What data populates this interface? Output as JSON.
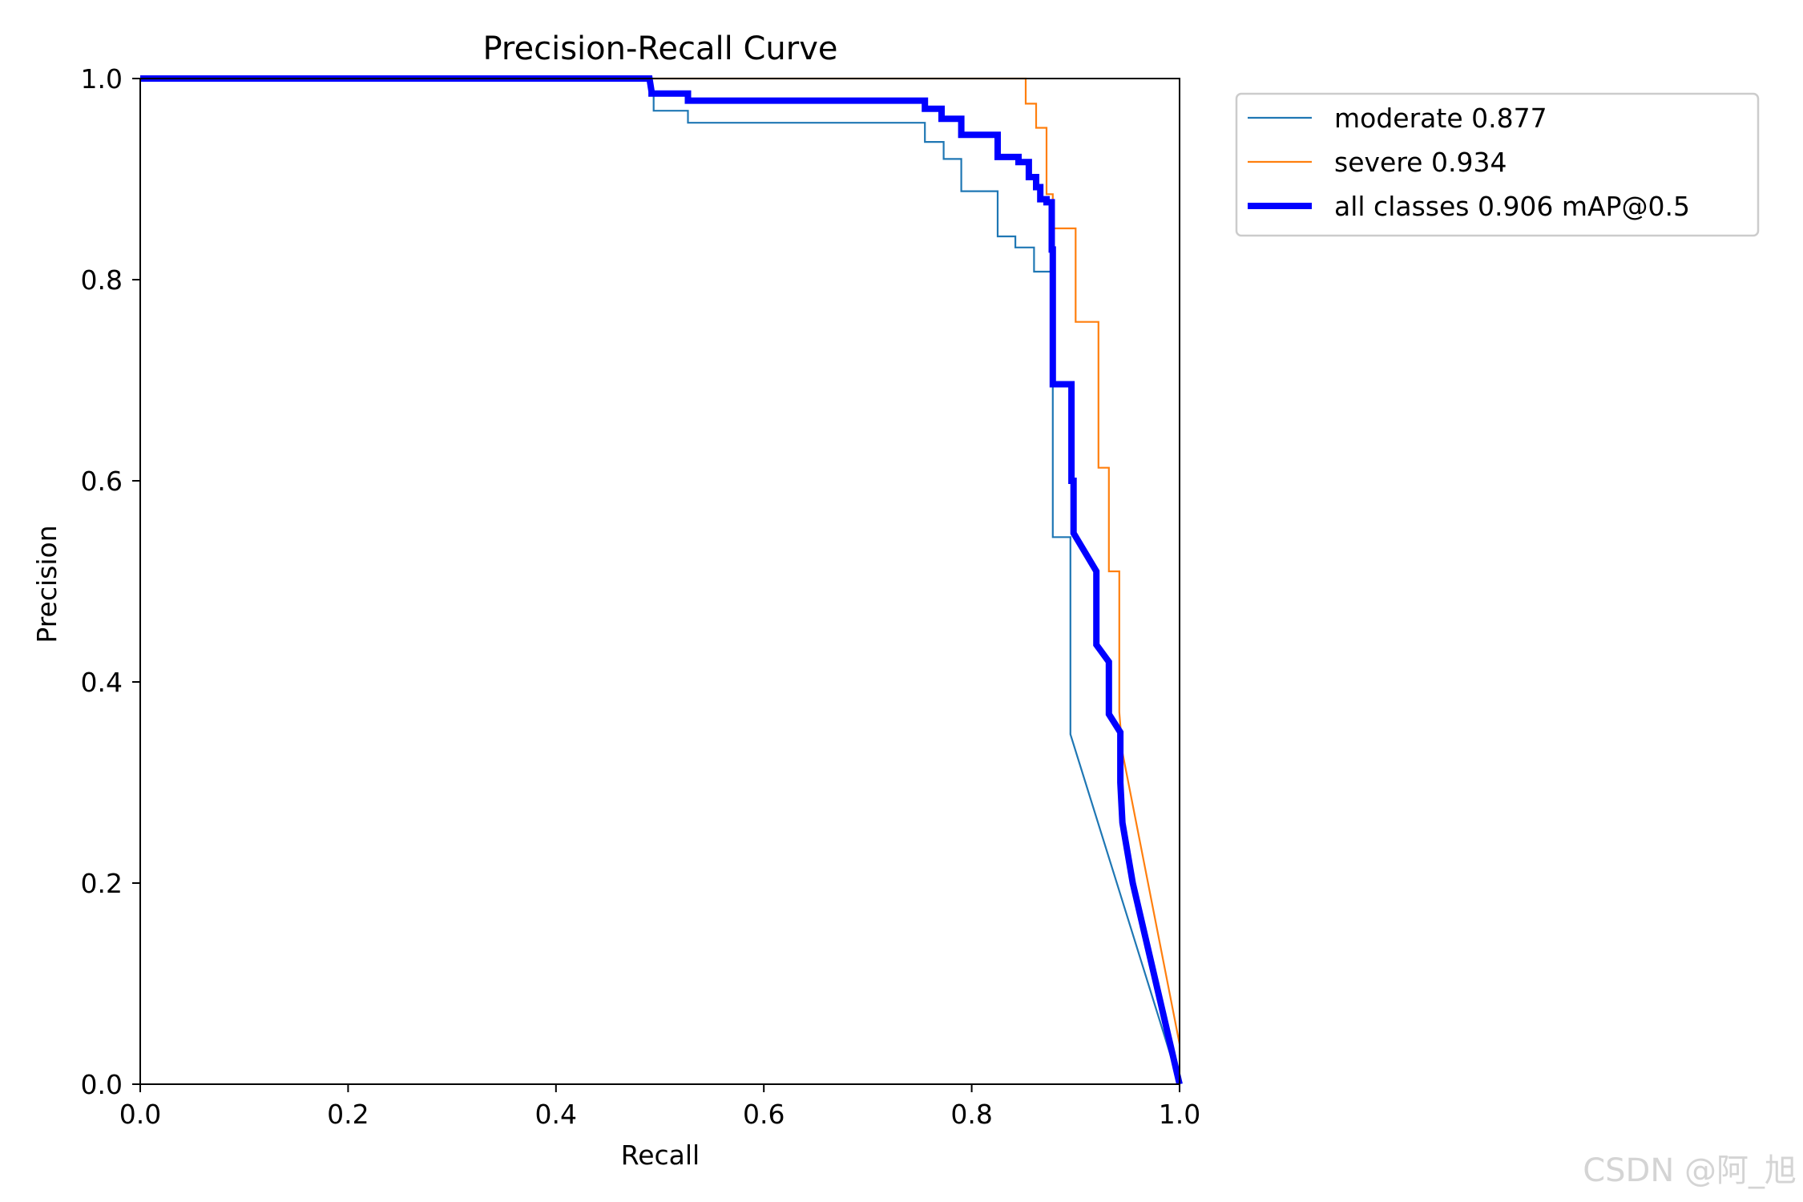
{
  "chart_data": {
    "type": "line",
    "title": "Precision-Recall Curve",
    "xlabel": "Recall",
    "ylabel": "Precision",
    "xlim": [
      0,
      1
    ],
    "ylim": [
      0,
      1
    ],
    "xticks": [
      "0.0",
      "0.2",
      "0.4",
      "0.6",
      "0.8",
      "1.0"
    ],
    "yticks": [
      "0.0",
      "0.2",
      "0.4",
      "0.6",
      "0.8",
      "1.0"
    ],
    "grid": false,
    "legend_position": "outside-top-right",
    "series": [
      {
        "name": "moderate 0.877",
        "color": "#1f77b4",
        "style": "thin",
        "x": [
          0,
          0.492,
          0.492,
          0.494,
          0.494,
          0.527,
          0.527,
          0.755,
          0.755,
          0.773,
          0.773,
          0.79,
          0.79,
          0.825,
          0.825,
          0.842,
          0.842,
          0.86,
          0.86,
          0.876,
          0.876,
          0.878,
          0.878,
          0.895,
          0.895,
          1.0
        ],
        "y": [
          1.0,
          1.0,
          0.985,
          0.985,
          0.968,
          0.968,
          0.956,
          0.956,
          0.937,
          0.937,
          0.92,
          0.92,
          0.888,
          0.888,
          0.843,
          0.843,
          0.832,
          0.832,
          0.808,
          0.808,
          0.695,
          0.695,
          0.544,
          0.544,
          0.348,
          0.0
        ]
      },
      {
        "name": "severe 0.934",
        "color": "#ff7f0e",
        "style": "thin",
        "x": [
          0,
          0.849,
          0.852,
          0.852,
          0.862,
          0.862,
          0.872,
          0.872,
          0.878,
          0.878,
          0.9,
          0.9,
          0.922,
          0.922,
          0.932,
          0.932,
          0.942,
          0.942,
          0.945,
          1.0
        ],
        "y": [
          1.0,
          1.0,
          1.0,
          0.975,
          0.975,
          0.951,
          0.951,
          0.885,
          0.885,
          0.851,
          0.851,
          0.758,
          0.758,
          0.613,
          0.613,
          0.51,
          0.51,
          0.37,
          0.33,
          0.04
        ]
      },
      {
        "name": "all classes 0.906 mAP@0.5",
        "color": "#0000ff",
        "style": "thick",
        "x": [
          0,
          0.49,
          0.492,
          0.492,
          0.527,
          0.527,
          0.755,
          0.755,
          0.771,
          0.771,
          0.79,
          0.79,
          0.825,
          0.825,
          0.845,
          0.845,
          0.855,
          0.855,
          0.862,
          0.862,
          0.866,
          0.866,
          0.872,
          0.872,
          0.877,
          0.877,
          0.878,
          0.878,
          0.896,
          0.896,
          0.898,
          0.898,
          0.92,
          0.92,
          0.932,
          0.932,
          0.943,
          0.943,
          0.945,
          0.955,
          1.0
        ],
        "y": [
          1.0,
          1.0,
          0.987,
          0.985,
          0.985,
          0.978,
          0.978,
          0.97,
          0.97,
          0.96,
          0.96,
          0.944,
          0.944,
          0.922,
          0.922,
          0.917,
          0.917,
          0.902,
          0.902,
          0.892,
          0.892,
          0.88,
          0.88,
          0.877,
          0.877,
          0.83,
          0.83,
          0.696,
          0.696,
          0.6,
          0.6,
          0.548,
          0.51,
          0.437,
          0.42,
          0.368,
          0.35,
          0.3,
          0.26,
          0.2,
          0.0
        ]
      }
    ]
  },
  "watermark": "CSDN @阿_旭"
}
